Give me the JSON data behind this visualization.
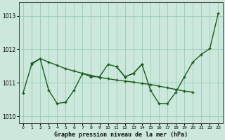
{
  "title": "Graphe pression niveau de la mer (hPa)",
  "background_color": "#cce8dc",
  "grid_color": "#99ccb3",
  "line_color": "#1a5c1a",
  "series1_x": [
    0,
    1,
    2,
    3,
    4,
    5,
    6,
    7,
    8,
    9,
    10,
    11,
    12,
    13,
    14
  ],
  "series1_y": [
    1010.7,
    1011.55,
    1011.72,
    1010.78,
    1010.38,
    1010.42,
    1010.78,
    1011.28,
    1011.18,
    1011.18,
    1011.55,
    1011.48,
    1011.18,
    1011.28,
    1011.55
  ],
  "series2_x": [
    1,
    2,
    3,
    4,
    5,
    6,
    7,
    8,
    9,
    10,
    11,
    12,
    13,
    14,
    15,
    16,
    17,
    18,
    19,
    20
  ],
  "series2_y": [
    1011.58,
    1011.72,
    1011.62,
    1011.52,
    1011.42,
    1011.35,
    1011.28,
    1011.22,
    1011.16,
    1011.12,
    1011.08,
    1011.05,
    1011.02,
    1010.98,
    1010.95,
    1010.9,
    1010.85,
    1010.8,
    1010.75,
    1010.72
  ],
  "series3_x": [
    11,
    12,
    13,
    14,
    15,
    16,
    17,
    18,
    19,
    20,
    21,
    22,
    23
  ],
  "series3_y": [
    1011.48,
    1011.18,
    1011.28,
    1011.55,
    1010.78,
    1010.38,
    1010.38,
    1010.72,
    1011.18,
    1011.62,
    1011.85,
    1012.02,
    1013.08
  ],
  "ylim": [
    1009.8,
    1013.4
  ],
  "yticks": [
    1010,
    1011,
    1012,
    1013
  ],
  "xticks": [
    0,
    1,
    2,
    3,
    4,
    5,
    6,
    7,
    8,
    9,
    10,
    11,
    12,
    13,
    14,
    15,
    16,
    17,
    18,
    19,
    20,
    21,
    22,
    23
  ]
}
